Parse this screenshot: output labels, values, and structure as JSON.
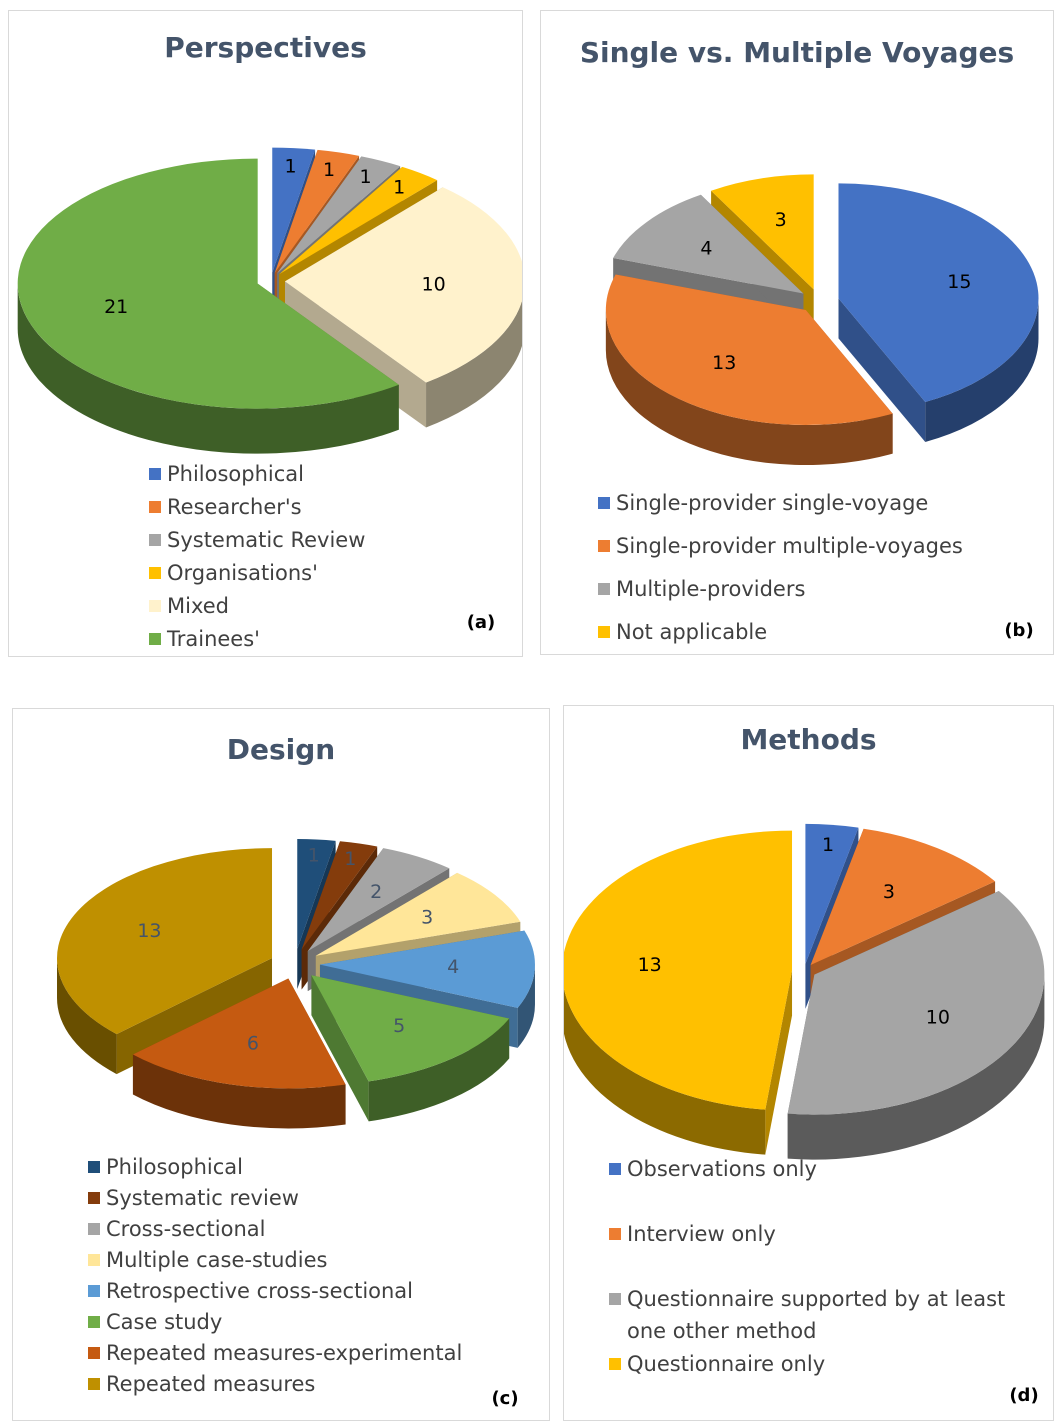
{
  "chart_data": [
    {
      "type": "pie",
      "title": "Perspectives",
      "panel_label": "(a)",
      "categories": [
        "Philosophical",
        "Researcher's",
        "Systematic Review",
        "Organisations'",
        "Mixed",
        "Trainees'"
      ],
      "values": [
        1,
        1,
        1,
        1,
        10,
        21
      ],
      "colors": [
        "#4472c4",
        "#ed7d31",
        "#a5a5a5",
        "#ffc000",
        "#fff2cc",
        "#70ad47"
      ]
    },
    {
      "type": "pie",
      "title": "Single vs. Multiple Voyages",
      "panel_label": "(b)",
      "categories": [
        "Single-provider single-voyage",
        "Single-provider multiple-voyages",
        "Multiple-providers",
        "Not applicable"
      ],
      "values": [
        15,
        13,
        4,
        3
      ],
      "colors": [
        "#4472c4",
        "#ed7d31",
        "#a5a5a5",
        "#ffc000"
      ]
    },
    {
      "type": "pie",
      "title": "Design",
      "panel_label": "(c)",
      "categories": [
        "Philosophical",
        "Systematic review",
        "Cross-sectional",
        "Multiple case-studies",
        "Retrospective cross-sectional",
        "Case study",
        "Repeated measures-experimental",
        "Repeated measures"
      ],
      "values": [
        1,
        1,
        2,
        3,
        4,
        5,
        6,
        13
      ],
      "colors": [
        "#1f4e79",
        "#843c0c",
        "#a5a5a5",
        "#ffe699",
        "#5b9bd5",
        "#70ad47",
        "#c55a11",
        "#bf9000"
      ]
    },
    {
      "type": "pie",
      "title": "Methods",
      "panel_label": "(d)",
      "categories": [
        "Observations only",
        "Interview only",
        "Questionnaire supported by at least one other method",
        "Questionnaire only"
      ],
      "values": [
        1,
        3,
        10,
        13
      ],
      "colors": [
        "#4472c4",
        "#ed7d31",
        "#a5a5a5",
        "#ffc000"
      ]
    }
  ]
}
